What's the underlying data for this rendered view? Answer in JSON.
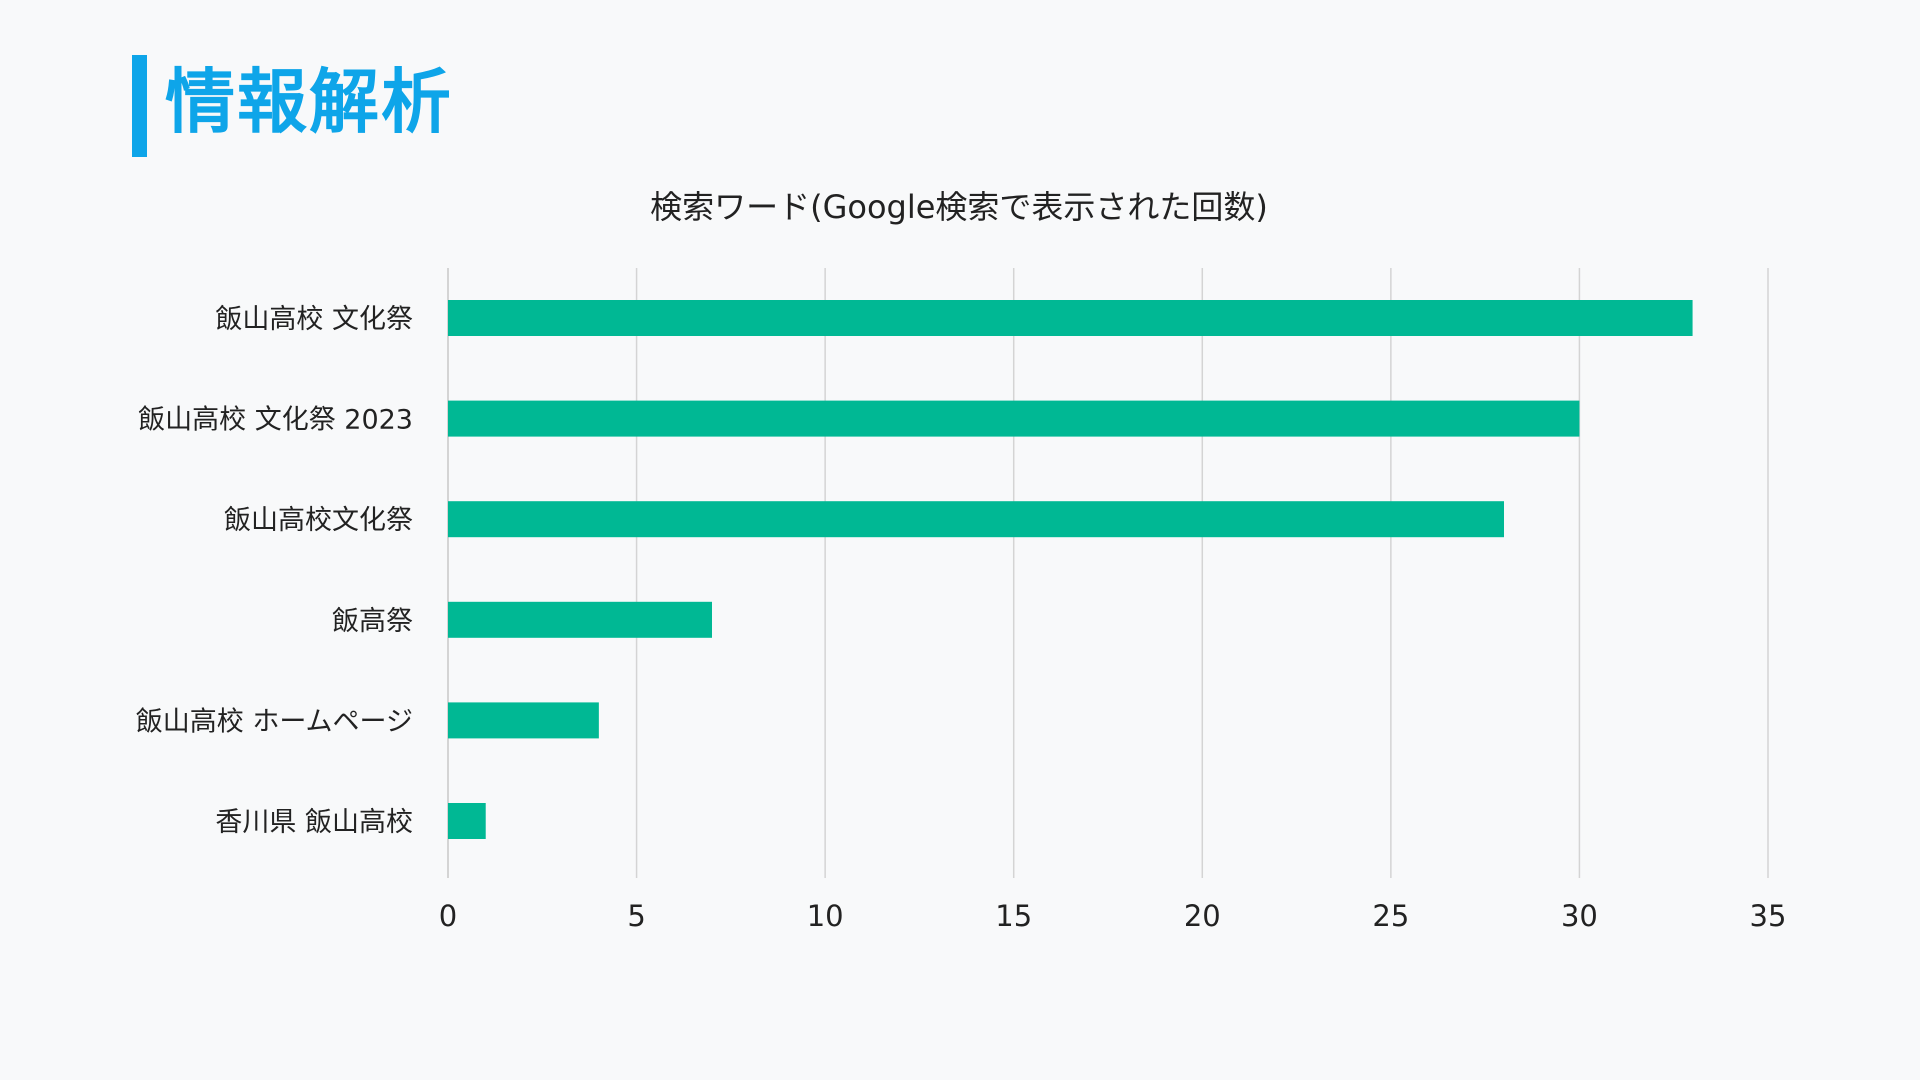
{
  "header": {
    "title": "情報解析"
  },
  "colors": {
    "accent": "#0ea5e9",
    "bar": "#00b894",
    "grid": "#d4d4d4"
  },
  "chart_data": {
    "type": "bar",
    "orientation": "horizontal",
    "title": "検索ワード(Google検索で表示された回数)",
    "xlabel": "",
    "ylabel": "",
    "categories": [
      "飯山高校 文化祭",
      "飯山高校 文化祭 2023",
      "飯山高校文化祭",
      "飯高祭",
      "飯山高校 ホームページ",
      "香川県 飯山高校"
    ],
    "values": [
      33,
      30,
      28,
      7,
      4,
      1
    ],
    "xlim": [
      0,
      35
    ],
    "xticks": [
      "0",
      "5",
      "10",
      "15",
      "20",
      "25",
      "30",
      "35"
    ],
    "grid": true,
    "legend": "none"
  }
}
